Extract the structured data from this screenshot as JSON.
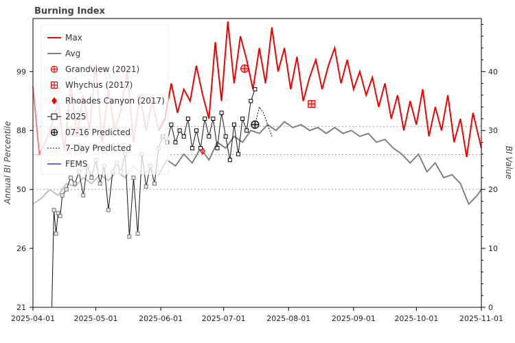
{
  "chart_data": {
    "type": "line",
    "title": "Burning Index",
    "ylabel_left": "Annual BI Percentile",
    "ylabel_right": "BI Value",
    "x_ticks": [
      "2025-04-01",
      "2025-05-01",
      "2025-06-01",
      "2025-07-01",
      "2025-08-01",
      "2025-09-01",
      "2025-10-01",
      "2025-11-01"
    ],
    "xlim": [
      "2025-04-01",
      "2025-11-01"
    ],
    "left_ticks": [
      {
        "label": "21",
        "bi": 0
      },
      {
        "label": "26",
        "bi": 10
      },
      {
        "label": "50",
        "bi": 20
      },
      {
        "label": "88",
        "bi": 30
      },
      {
        "label": "99",
        "bi": 40
      }
    ],
    "right_ticks": [
      0,
      10,
      20,
      30,
      40
    ],
    "ylim_bi": [
      0,
      49
    ],
    "percentile_lines_bi": [
      20,
      25.9,
      30.7
    ],
    "legend": {
      "placement": "top-left",
      "entries": [
        "Max",
        "Avg",
        "Grandview (2021)",
        "Whychus (2017)",
        "Rhoades Canyon (2017)",
        "2025",
        "07-16 Predicted",
        "7-Day Predicted",
        "FEMS"
      ]
    },
    "colors": {
      "max": "#ee0000",
      "max_light": "#f08080",
      "avg": "#808080",
      "avg_light": "#c0c0c0",
      "current": "#111111",
      "fems": "#6666ee",
      "grid": "#9a9a9a"
    },
    "series": [
      {
        "name": "Max",
        "points": [
          [
            "2025-04-01",
            37.5
          ],
          [
            "2025-04-04",
            26
          ],
          [
            "2025-04-07",
            28
          ],
          [
            "2025-04-10",
            31
          ],
          [
            "2025-04-13",
            35
          ],
          [
            "2025-04-16",
            26.5
          ],
          [
            "2025-04-19",
            38
          ],
          [
            "2025-04-22",
            29
          ],
          [
            "2025-04-25",
            36
          ],
          [
            "2025-04-28",
            30
          ],
          [
            "2025-05-01",
            41
          ],
          [
            "2025-05-04",
            28
          ],
          [
            "2025-05-07",
            37
          ],
          [
            "2025-05-10",
            30
          ],
          [
            "2025-05-13",
            33.5
          ],
          [
            "2025-05-16",
            40
          ],
          [
            "2025-05-19",
            28
          ],
          [
            "2025-05-22",
            36
          ],
          [
            "2025-05-25",
            30
          ],
          [
            "2025-05-28",
            35
          ],
          [
            "2025-05-31",
            30
          ],
          [
            "2025-06-03",
            32
          ],
          [
            "2025-06-06",
            38
          ],
          [
            "2025-06-09",
            33
          ],
          [
            "2025-06-12",
            37
          ],
          [
            "2025-06-15",
            35
          ],
          [
            "2025-06-18",
            41
          ],
          [
            "2025-06-21",
            36
          ],
          [
            "2025-06-24",
            32
          ],
          [
            "2025-06-27",
            45
          ],
          [
            "2025-06-30",
            35
          ],
          [
            "2025-07-03",
            48.5
          ],
          [
            "2025-07-06",
            38
          ],
          [
            "2025-07-09",
            46
          ],
          [
            "2025-07-12",
            42
          ],
          [
            "2025-07-15",
            37
          ],
          [
            "2025-07-18",
            44
          ],
          [
            "2025-07-21",
            38
          ],
          [
            "2025-07-24",
            47.5
          ],
          [
            "2025-07-27",
            40
          ],
          [
            "2025-07-30",
            44
          ],
          [
            "2025-08-02",
            37
          ],
          [
            "2025-08-05",
            42.5
          ],
          [
            "2025-08-08",
            35
          ],
          [
            "2025-08-11",
            39
          ],
          [
            "2025-08-14",
            42
          ],
          [
            "2025-08-17",
            37
          ],
          [
            "2025-08-20",
            41
          ],
          [
            "2025-08-23",
            44
          ],
          [
            "2025-08-26",
            38
          ],
          [
            "2025-08-29",
            42
          ],
          [
            "2025-09-01",
            37
          ],
          [
            "2025-09-04",
            40
          ],
          [
            "2025-09-07",
            36
          ],
          [
            "2025-09-10",
            39
          ],
          [
            "2025-09-13",
            34
          ],
          [
            "2025-09-16",
            38
          ],
          [
            "2025-09-19",
            32
          ],
          [
            "2025-09-22",
            36
          ],
          [
            "2025-09-25",
            30
          ],
          [
            "2025-09-28",
            35
          ],
          [
            "2025-10-01",
            31
          ],
          [
            "2025-10-04",
            37
          ],
          [
            "2025-10-07",
            29
          ],
          [
            "2025-10-10",
            34
          ],
          [
            "2025-10-13",
            30
          ],
          [
            "2025-10-16",
            36
          ],
          [
            "2025-10-19",
            28
          ],
          [
            "2025-10-22",
            32
          ],
          [
            "2025-10-25",
            25.5
          ],
          [
            "2025-10-28",
            33
          ],
          [
            "2025-11-01",
            27
          ]
        ]
      },
      {
        "name": "Avg",
        "points": [
          [
            "2025-04-01",
            17.5
          ],
          [
            "2025-04-05",
            18.5
          ],
          [
            "2025-04-09",
            20
          ],
          [
            "2025-04-13",
            19
          ],
          [
            "2025-04-17",
            21
          ],
          [
            "2025-04-21",
            20.5
          ],
          [
            "2025-04-25",
            22
          ],
          [
            "2025-04-29",
            21
          ],
          [
            "2025-05-03",
            22.5
          ],
          [
            "2025-05-07",
            21.5
          ],
          [
            "2025-05-11",
            23
          ],
          [
            "2025-05-15",
            22
          ],
          [
            "2025-05-19",
            24
          ],
          [
            "2025-05-23",
            22.5
          ],
          [
            "2025-05-27",
            23.5
          ],
          [
            "2025-05-31",
            22.5
          ],
          [
            "2025-06-04",
            25
          ],
          [
            "2025-06-08",
            24
          ],
          [
            "2025-06-12",
            26
          ],
          [
            "2025-06-16",
            24.5
          ],
          [
            "2025-06-20",
            27
          ],
          [
            "2025-06-24",
            25
          ],
          [
            "2025-06-28",
            28
          ],
          [
            "2025-07-02",
            27
          ],
          [
            "2025-07-06",
            29
          ],
          [
            "2025-07-10",
            28
          ],
          [
            "2025-07-14",
            30
          ],
          [
            "2025-07-18",
            29.5
          ],
          [
            "2025-07-22",
            31
          ],
          [
            "2025-07-26",
            30
          ],
          [
            "2025-07-30",
            31.5
          ],
          [
            "2025-08-03",
            30.5
          ],
          [
            "2025-08-07",
            31
          ],
          [
            "2025-08-11",
            30
          ],
          [
            "2025-08-15",
            30.5
          ],
          [
            "2025-08-19",
            29.5
          ],
          [
            "2025-08-23",
            30.5
          ],
          [
            "2025-08-27",
            29.5
          ],
          [
            "2025-08-31",
            30
          ],
          [
            "2025-09-04",
            29
          ],
          [
            "2025-09-08",
            29.5
          ],
          [
            "2025-09-12",
            28
          ],
          [
            "2025-09-16",
            28.5
          ],
          [
            "2025-09-20",
            27
          ],
          [
            "2025-09-24",
            26
          ],
          [
            "2025-09-28",
            24.5
          ],
          [
            "2025-10-02",
            26
          ],
          [
            "2025-10-06",
            23
          ],
          [
            "2025-10-10",
            24.5
          ],
          [
            "2025-10-14",
            22
          ],
          [
            "2025-10-18",
            22.5
          ],
          [
            "2025-10-22",
            21
          ],
          [
            "2025-10-26",
            17.5
          ],
          [
            "2025-10-30",
            19
          ],
          [
            "2025-11-01",
            20
          ]
        ]
      },
      {
        "name": "2025",
        "points": [
          [
            "2025-04-01",
            0
          ],
          [
            "2025-04-10",
            0
          ],
          [
            "2025-04-11",
            16.5
          ],
          [
            "2025-04-12",
            12.5
          ],
          [
            "2025-04-13",
            16
          ],
          [
            "2025-04-14",
            15.5
          ],
          [
            "2025-04-15",
            19
          ],
          [
            "2025-04-17",
            20
          ],
          [
            "2025-04-19",
            22
          ],
          [
            "2025-04-21",
            21
          ],
          [
            "2025-04-23",
            23
          ],
          [
            "2025-04-25",
            19
          ],
          [
            "2025-04-27",
            24
          ],
          [
            "2025-04-29",
            22
          ],
          [
            "2025-05-01",
            25
          ],
          [
            "2025-05-03",
            21
          ],
          [
            "2025-05-05",
            24
          ],
          [
            "2025-05-07",
            16.5
          ],
          [
            "2025-05-09",
            23
          ],
          [
            "2025-05-11",
            24.5
          ],
          [
            "2025-05-13",
            23
          ],
          [
            "2025-05-15",
            26
          ],
          [
            "2025-05-17",
            12
          ],
          [
            "2025-05-19",
            22
          ],
          [
            "2025-05-21",
            12.5
          ],
          [
            "2025-05-23",
            26
          ],
          [
            "2025-05-25",
            20.5
          ],
          [
            "2025-05-27",
            24
          ],
          [
            "2025-05-29",
            21
          ],
          [
            "2025-05-31",
            27
          ],
          [
            "2025-06-02",
            29
          ],
          [
            "2025-06-04",
            28
          ],
          [
            "2025-06-06",
            31
          ],
          [
            "2025-06-08",
            28
          ],
          [
            "2025-06-10",
            30
          ],
          [
            "2025-06-12",
            29
          ],
          [
            "2025-06-14",
            32
          ],
          [
            "2025-06-16",
            27
          ],
          [
            "2025-06-18",
            30
          ],
          [
            "2025-06-20",
            27
          ],
          [
            "2025-06-22",
            32
          ],
          [
            "2025-06-24",
            29
          ],
          [
            "2025-06-26",
            32
          ],
          [
            "2025-06-28",
            27
          ],
          [
            "2025-06-30",
            33
          ],
          [
            "2025-07-02",
            29
          ],
          [
            "2025-07-04",
            25
          ],
          [
            "2025-07-06",
            31
          ],
          [
            "2025-07-08",
            26
          ],
          [
            "2025-07-10",
            32
          ],
          [
            "2025-07-12",
            30
          ],
          [
            "2025-07-14",
            35
          ],
          [
            "2025-07-16",
            37
          ]
        ]
      },
      {
        "name": "7-Day Predicted",
        "points": [
          [
            "2025-07-16",
            31
          ],
          [
            "2025-07-18",
            34
          ],
          [
            "2025-07-20",
            33
          ],
          [
            "2025-07-22",
            31
          ],
          [
            "2025-07-24",
            29
          ]
        ]
      }
    ],
    "markers": [
      {
        "name": "Grandview (2021)",
        "x": "2025-07-11",
        "y": 40.5
      },
      {
        "name": "Whychus (2017)",
        "x": "2025-08-12",
        "y": 34.5
      },
      {
        "name": "Rhoades Canyon (2017)",
        "x": "2025-06-21",
        "y": 26.5
      },
      {
        "name": "07-16 Predicted",
        "x": "2025-07-16",
        "y": 31
      }
    ]
  }
}
